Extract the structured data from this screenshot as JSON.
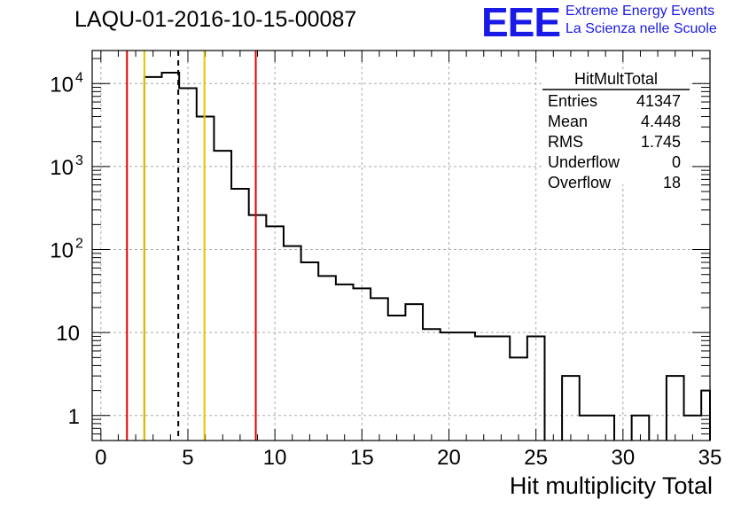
{
  "chart_data": {
    "type": "histogram",
    "title": "LAQU-01-2016-10-15-00087",
    "xlabel": "Hit multiplicity Total",
    "ylabel": "",
    "yscale": "log",
    "xlim": [
      -0.5,
      35
    ],
    "ylim": [
      0.5,
      25000
    ],
    "grid": true,
    "bins": [
      {
        "x": 0,
        "value": 0
      },
      {
        "x": 1,
        "value": 0
      },
      {
        "x": 2,
        "value": 0
      },
      {
        "x": 3,
        "value": 12000
      },
      {
        "x": 4,
        "value": 13500
      },
      {
        "x": 5,
        "value": 8800
      },
      {
        "x": 6,
        "value": 4000
      },
      {
        "x": 7,
        "value": 1550
      },
      {
        "x": 8,
        "value": 540
      },
      {
        "x": 9,
        "value": 260
      },
      {
        "x": 10,
        "value": 190
      },
      {
        "x": 11,
        "value": 110
      },
      {
        "x": 12,
        "value": 70
      },
      {
        "x": 13,
        "value": 48
      },
      {
        "x": 14,
        "value": 38
      },
      {
        "x": 15,
        "value": 34
      },
      {
        "x": 16,
        "value": 26
      },
      {
        "x": 17,
        "value": 16
      },
      {
        "x": 18,
        "value": 22
      },
      {
        "x": 19,
        "value": 11
      },
      {
        "x": 20,
        "value": 10
      },
      {
        "x": 21,
        "value": 10
      },
      {
        "x": 22,
        "value": 9
      },
      {
        "x": 23,
        "value": 9
      },
      {
        "x": 24,
        "value": 5
      },
      {
        "x": 25,
        "value": 9
      },
      {
        "x": 26,
        "value": 0
      },
      {
        "x": 27,
        "value": 3
      },
      {
        "x": 28,
        "value": 1
      },
      {
        "x": 29,
        "value": 1
      },
      {
        "x": 30,
        "value": 0
      },
      {
        "x": 31,
        "value": 1
      },
      {
        "x": 32,
        "value": 0
      },
      {
        "x": 33,
        "value": 3
      },
      {
        "x": 34,
        "value": 1
      },
      {
        "x": 35,
        "value": 2
      }
    ],
    "vertical_lines": [
      {
        "x": 1.5,
        "color": "#e60000",
        "style": "solid"
      },
      {
        "x": 2.5,
        "color": "#e8c000",
        "style": "solid"
      },
      {
        "x": 4.448,
        "color": "#000000",
        "style": "dashed"
      },
      {
        "x": 5.95,
        "color": "#e8c000",
        "style": "solid"
      },
      {
        "x": 8.9,
        "color": "#e60000",
        "style": "solid"
      }
    ],
    "x_ticks": [
      {
        "value": 0,
        "label": "0"
      },
      {
        "value": 5,
        "label": "5"
      },
      {
        "value": 10,
        "label": "10"
      },
      {
        "value": 15,
        "label": "15"
      },
      {
        "value": 20,
        "label": "20"
      },
      {
        "value": 25,
        "label": "25"
      },
      {
        "value": 30,
        "label": "30"
      },
      {
        "value": 35,
        "label": "35"
      }
    ],
    "y_ticks": [
      {
        "value": 1,
        "base": "1",
        "exp": ""
      },
      {
        "value": 10,
        "base": "10",
        "exp": ""
      },
      {
        "value": 100,
        "base": "10",
        "exp": "2"
      },
      {
        "value": 1000,
        "base": "10",
        "exp": "3"
      },
      {
        "value": 10000,
        "base": "10",
        "exp": "4"
      }
    ],
    "stats_box": {
      "name": "HitMultTotal",
      "rows": [
        {
          "label": "Entries",
          "value": "41347"
        },
        {
          "label": "Mean",
          "value": "4.448"
        },
        {
          "label": "RMS",
          "value": "1.745"
        },
        {
          "label": "Underflow",
          "value": "0"
        },
        {
          "label": "Overflow",
          "value": "18"
        }
      ]
    }
  },
  "logo": {
    "mark": "EEE",
    "line1": "Extreme Energy Events",
    "line2": "La Scienza nelle Scuole"
  }
}
